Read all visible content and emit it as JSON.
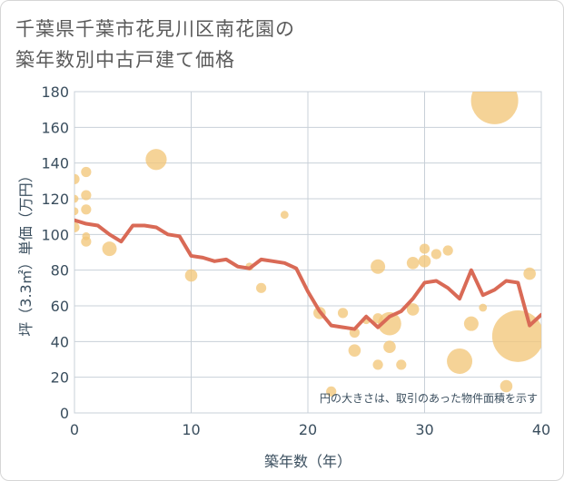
{
  "title_lines": [
    "千葉県千葉市花見川区南花園の",
    "築年数別中古戸建て価格"
  ],
  "chart_data": {
    "type": "scatter",
    "xlabel": "築年数（年）",
    "ylabel": "坪（3.3㎡）単価（万円）",
    "note": "円の大きさは、取引のあった物件面積を示す",
    "xlim": [
      0,
      40
    ],
    "ylim": [
      0,
      180
    ],
    "xticks": [
      0,
      10,
      20,
      30,
      40
    ],
    "yticks": [
      0,
      20,
      40,
      60,
      80,
      100,
      120,
      140,
      160,
      180
    ],
    "colors": {
      "bubble": "#f2c77a",
      "line": "#d96a56",
      "grid": "#c8d0d8",
      "plot_bg": "#ffffff"
    },
    "scatter": [
      {
        "x": 0,
        "y": 131,
        "s": 3
      },
      {
        "x": 0,
        "y": 120,
        "s": 2
      },
      {
        "x": 0,
        "y": 113,
        "s": 2
      },
      {
        "x": 0,
        "y": 104,
        "s": 3
      },
      {
        "x": 1,
        "y": 135,
        "s": 3
      },
      {
        "x": 1,
        "y": 122,
        "s": 3
      },
      {
        "x": 1,
        "y": 114,
        "s": 3
      },
      {
        "x": 1,
        "y": 99,
        "s": 2
      },
      {
        "x": 1,
        "y": 96,
        "s": 3
      },
      {
        "x": 3,
        "y": 92,
        "s": 5
      },
      {
        "x": 7,
        "y": 142,
        "s": 8
      },
      {
        "x": 10,
        "y": 77,
        "s": 4
      },
      {
        "x": 15,
        "y": 82,
        "s": 2
      },
      {
        "x": 16,
        "y": 70,
        "s": 3
      },
      {
        "x": 18,
        "y": 111,
        "s": 2
      },
      {
        "x": 21,
        "y": 56,
        "s": 4
      },
      {
        "x": 22,
        "y": 12,
        "s": 3
      },
      {
        "x": 23,
        "y": 56,
        "s": 3
      },
      {
        "x": 24,
        "y": 45,
        "s": 3
      },
      {
        "x": 24,
        "y": 35,
        "s": 4
      },
      {
        "x": 25,
        "y": 52,
        "s": 2
      },
      {
        "x": 26,
        "y": 82,
        "s": 5
      },
      {
        "x": 26,
        "y": 53,
        "s": 3
      },
      {
        "x": 26,
        "y": 27,
        "s": 3
      },
      {
        "x": 27,
        "y": 50,
        "s": 9
      },
      {
        "x": 27,
        "y": 37,
        "s": 4
      },
      {
        "x": 28,
        "y": 27,
        "s": 3
      },
      {
        "x": 29,
        "y": 84,
        "s": 4
      },
      {
        "x": 29,
        "y": 58,
        "s": 4
      },
      {
        "x": 30,
        "y": 92,
        "s": 3
      },
      {
        "x": 30,
        "y": 85,
        "s": 4
      },
      {
        "x": 31,
        "y": 89,
        "s": 3
      },
      {
        "x": 32,
        "y": 91,
        "s": 3
      },
      {
        "x": 33,
        "y": 29,
        "s": 10
      },
      {
        "x": 34,
        "y": 50,
        "s": 5
      },
      {
        "x": 35,
        "y": 59,
        "s": 2
      },
      {
        "x": 36,
        "y": 175,
        "s": 20
      },
      {
        "x": 37,
        "y": 15,
        "s": 4
      },
      {
        "x": 38,
        "y": 43,
        "s": 22
      },
      {
        "x": 39,
        "y": 78,
        "s": 4
      }
    ],
    "line": {
      "x": [
        0,
        1,
        2,
        3,
        4,
        5,
        6,
        7,
        8,
        9,
        10,
        11,
        12,
        13,
        14,
        15,
        16,
        17,
        18,
        19,
        20,
        21,
        22,
        23,
        24,
        25,
        26,
        27,
        28,
        29,
        30,
        31,
        32,
        33,
        34,
        35,
        36,
        37,
        38,
        39,
        40
      ],
      "y": [
        108,
        106,
        105,
        100,
        96,
        105,
        105,
        104,
        100,
        99,
        88,
        87,
        85,
        86,
        82,
        81,
        86,
        85,
        84,
        81,
        68,
        57,
        49,
        48,
        47,
        54,
        48,
        54,
        57,
        64,
        73,
        74,
        70,
        64,
        80,
        66,
        69,
        74,
        73,
        49,
        55
      ]
    }
  }
}
